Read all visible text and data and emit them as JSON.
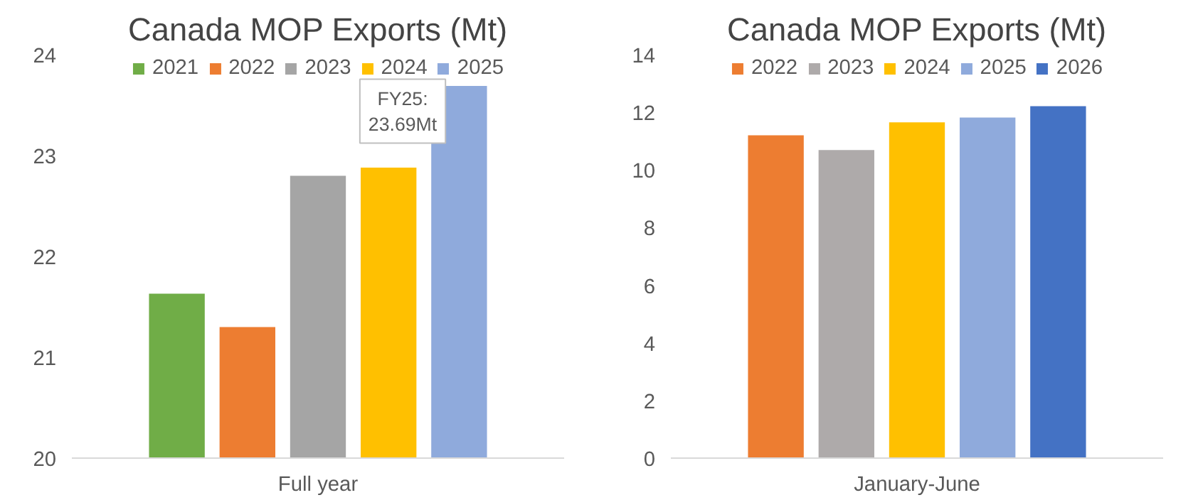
{
  "chart_data": [
    {
      "type": "bar",
      "title": "Canada MOP Exports (Mt)",
      "categories": [
        "Full year"
      ],
      "ylim": [
        20,
        24
      ],
      "yticks": [
        20,
        21,
        22,
        23,
        24
      ],
      "grid": false,
      "legend": "top",
      "series": [
        {
          "name": "2021",
          "color": "#70ad47",
          "values": [
            21.63
          ]
        },
        {
          "name": "2022",
          "color": "#ed7d31",
          "values": [
            21.3
          ]
        },
        {
          "name": "2023",
          "color": "#a5a5a5",
          "values": [
            22.8
          ]
        },
        {
          "name": "2024",
          "color": "#ffc000",
          "values": [
            22.88
          ]
        },
        {
          "name": "2025",
          "color": "#8faadc",
          "values": [
            23.69
          ]
        }
      ],
      "annotations": [
        "FY25:\n23.69Mt"
      ]
    },
    {
      "type": "bar",
      "title": "Canada MOP Exports (Mt)",
      "categories": [
        "January-June"
      ],
      "ylim": [
        0,
        14
      ],
      "yticks": [
        0,
        2,
        4,
        6,
        8,
        10,
        12,
        14
      ],
      "grid": false,
      "legend": "top",
      "series": [
        {
          "name": "2022",
          "color": "#ed7d31",
          "values": [
            11.2
          ]
        },
        {
          "name": "2023",
          "color": "#aeaaaa",
          "values": [
            10.69
          ]
        },
        {
          "name": "2024",
          "color": "#ffc000",
          "values": [
            11.65
          ]
        },
        {
          "name": "2025",
          "color": "#8faadc",
          "values": [
            11.82
          ]
        },
        {
          "name": "2026",
          "color": "#4472c4",
          "values": [
            12.21
          ]
        }
      ]
    }
  ]
}
